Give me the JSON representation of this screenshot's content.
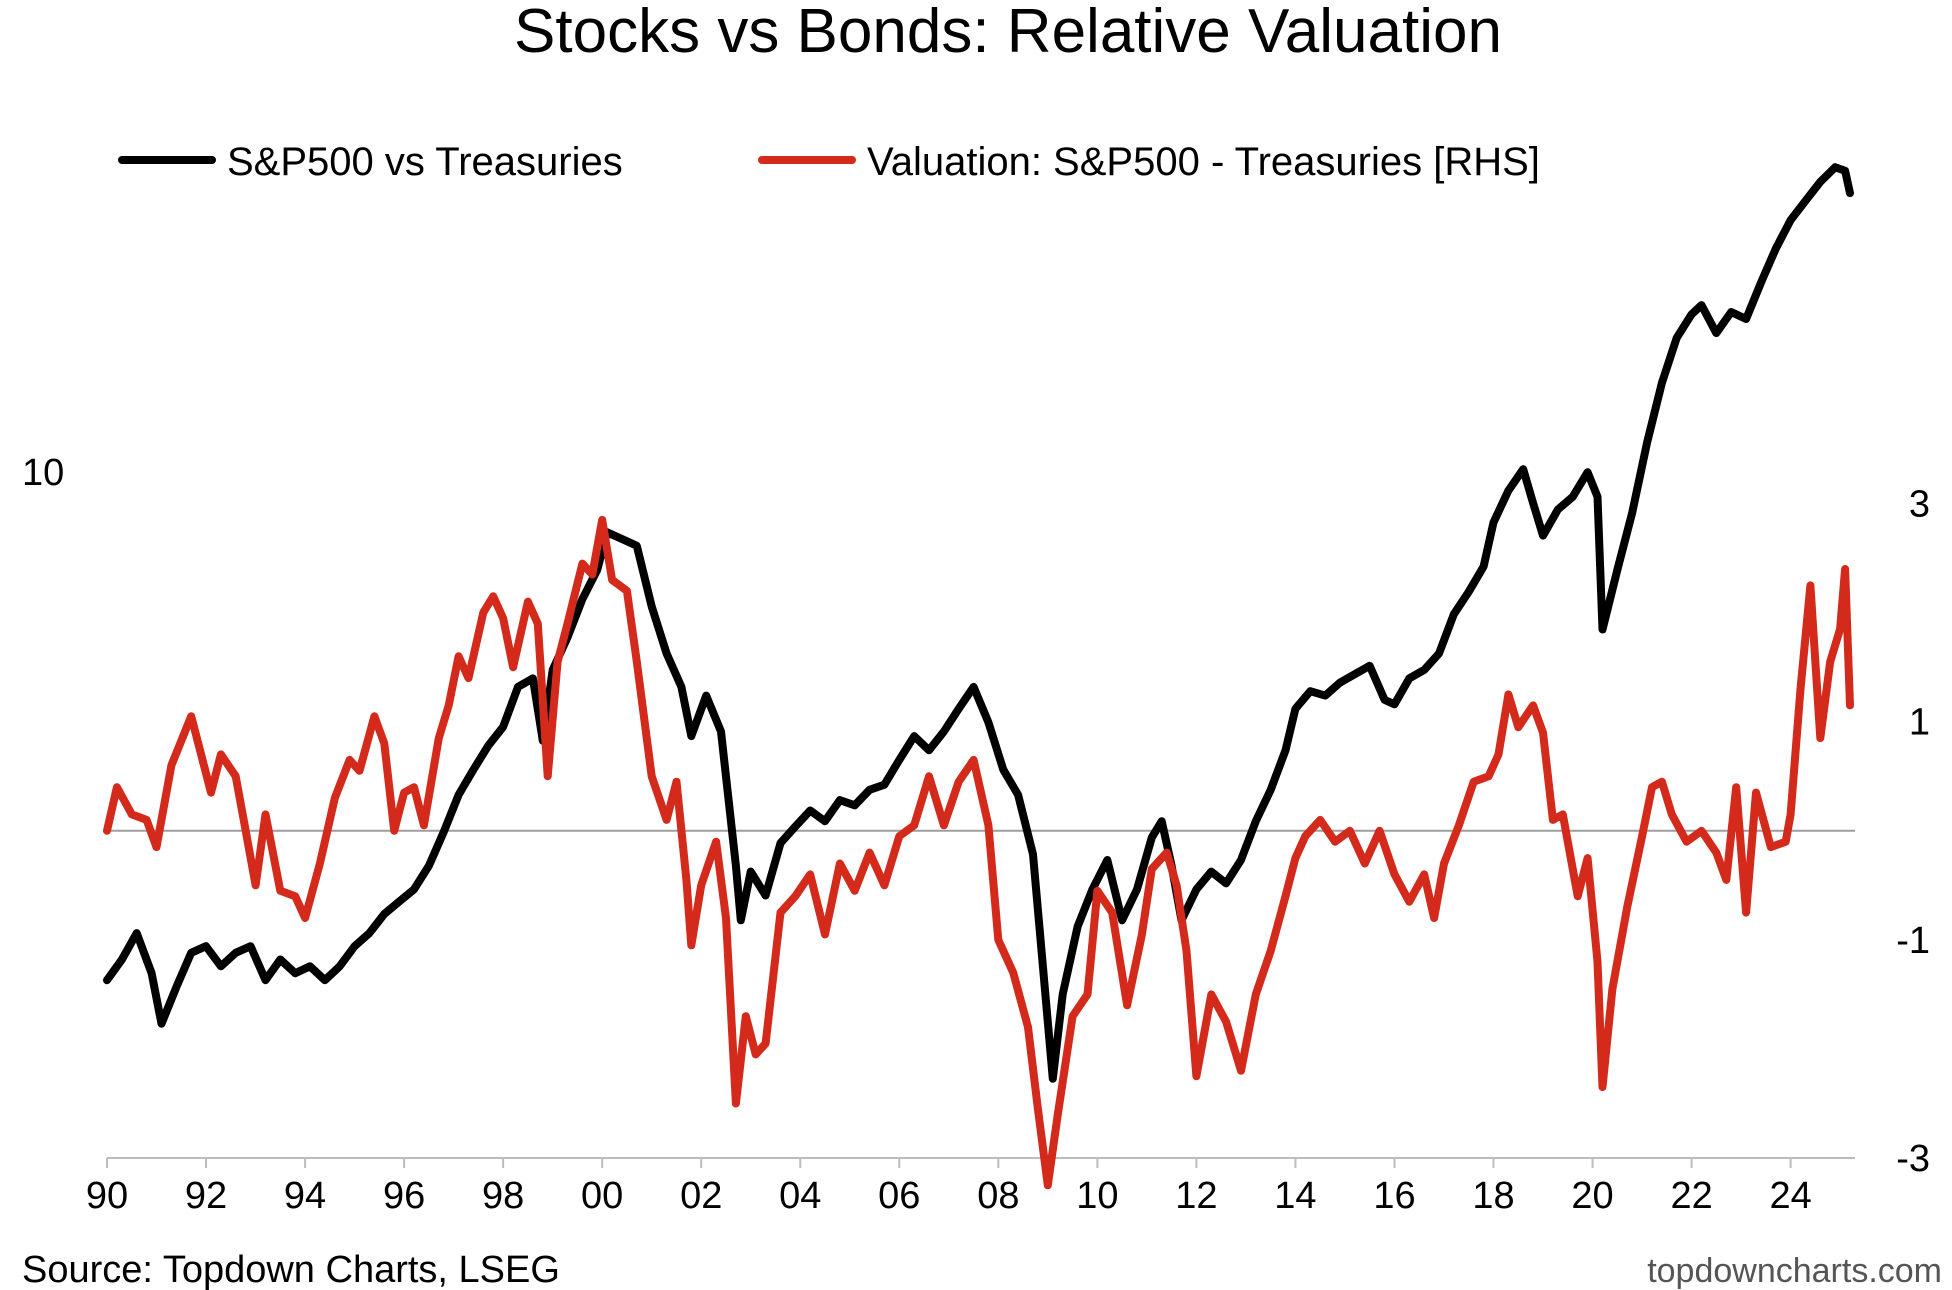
{
  "chart_data": {
    "type": "line",
    "title": "Stocks vs Bonds: Relative Valuation",
    "x_ticks": [
      "90",
      "92",
      "94",
      "96",
      "98",
      "00",
      "02",
      "04",
      "06",
      "08",
      "10",
      "12",
      "14",
      "16",
      "18",
      "20",
      "22",
      "24"
    ],
    "xlim": [
      1990,
      2025.3
    ],
    "left_axis": {
      "scale": "log",
      "ticks": [
        {
          "value": 10,
          "label": "10"
        }
      ],
      "ylim": [
        3.2,
        16.8
      ]
    },
    "right_axis": {
      "scale": "linear",
      "ticks": [
        {
          "value": 3,
          "label": "3"
        },
        {
          "value": 1,
          "label": "1"
        },
        {
          "value": -1,
          "label": "-1"
        },
        {
          "value": -3,
          "label": "-3"
        }
      ],
      "ylim": [
        -3,
        6.15
      ]
    },
    "zero_line": true,
    "grid": false,
    "legend_position": "top-left",
    "series": [
      {
        "name": "S&P500 vs Treasuries",
        "axis": "left",
        "color": "#000000",
        "points": [
          [
            1990.0,
            4.3
          ],
          [
            1990.3,
            4.45
          ],
          [
            1990.6,
            4.65
          ],
          [
            1990.9,
            4.35
          ],
          [
            1991.1,
            4.0
          ],
          [
            1991.4,
            4.25
          ],
          [
            1991.7,
            4.5
          ],
          [
            1992.0,
            4.55
          ],
          [
            1992.3,
            4.4
          ],
          [
            1992.6,
            4.5
          ],
          [
            1992.9,
            4.55
          ],
          [
            1993.2,
            4.3
          ],
          [
            1993.5,
            4.45
          ],
          [
            1993.8,
            4.35
          ],
          [
            1994.1,
            4.4
          ],
          [
            1994.4,
            4.3
          ],
          [
            1994.7,
            4.4
          ],
          [
            1995.0,
            4.55
          ],
          [
            1995.3,
            4.65
          ],
          [
            1995.6,
            4.8
          ],
          [
            1995.9,
            4.9
          ],
          [
            1996.2,
            5.0
          ],
          [
            1996.5,
            5.2
          ],
          [
            1996.8,
            5.5
          ],
          [
            1997.1,
            5.85
          ],
          [
            1997.4,
            6.1
          ],
          [
            1997.7,
            6.35
          ],
          [
            1998.0,
            6.55
          ],
          [
            1998.3,
            7.0
          ],
          [
            1998.6,
            7.1
          ],
          [
            1998.8,
            6.4
          ],
          [
            1999.0,
            7.2
          ],
          [
            1999.3,
            7.6
          ],
          [
            1999.6,
            8.1
          ],
          [
            1999.9,
            8.5
          ],
          [
            2000.1,
            9.05
          ],
          [
            2000.4,
            8.95
          ],
          [
            2000.7,
            8.85
          ],
          [
            2001.0,
            8.0
          ],
          [
            2001.3,
            7.4
          ],
          [
            2001.6,
            7.0
          ],
          [
            2001.8,
            6.45
          ],
          [
            2002.1,
            6.9
          ],
          [
            2002.4,
            6.5
          ],
          [
            2002.7,
            5.2
          ],
          [
            2002.8,
            4.75
          ],
          [
            2003.0,
            5.15
          ],
          [
            2003.3,
            4.95
          ],
          [
            2003.6,
            5.4
          ],
          [
            2003.9,
            5.55
          ],
          [
            2004.2,
            5.7
          ],
          [
            2004.5,
            5.6
          ],
          [
            2004.8,
            5.8
          ],
          [
            2005.1,
            5.75
          ],
          [
            2005.4,
            5.9
          ],
          [
            2005.7,
            5.95
          ],
          [
            2006.0,
            6.2
          ],
          [
            2006.3,
            6.45
          ],
          [
            2006.6,
            6.3
          ],
          [
            2006.9,
            6.5
          ],
          [
            2007.2,
            6.75
          ],
          [
            2007.5,
            7.0
          ],
          [
            2007.8,
            6.6
          ],
          [
            2008.1,
            6.1
          ],
          [
            2008.4,
            5.85
          ],
          [
            2008.7,
            5.3
          ],
          [
            2008.9,
            4.4
          ],
          [
            2009.1,
            3.65
          ],
          [
            2009.3,
            4.2
          ],
          [
            2009.6,
            4.7
          ],
          [
            2009.9,
            5.0
          ],
          [
            2010.2,
            5.25
          ],
          [
            2010.5,
            4.75
          ],
          [
            2010.8,
            5.0
          ],
          [
            2011.1,
            5.45
          ],
          [
            2011.3,
            5.6
          ],
          [
            2011.5,
            5.2
          ],
          [
            2011.7,
            4.75
          ],
          [
            2012.0,
            5.0
          ],
          [
            2012.3,
            5.15
          ],
          [
            2012.6,
            5.05
          ],
          [
            2012.9,
            5.25
          ],
          [
            2013.2,
            5.6
          ],
          [
            2013.5,
            5.9
          ],
          [
            2013.8,
            6.3
          ],
          [
            2014.0,
            6.75
          ],
          [
            2014.3,
            6.95
          ],
          [
            2014.6,
            6.9
          ],
          [
            2014.9,
            7.05
          ],
          [
            2015.2,
            7.15
          ],
          [
            2015.5,
            7.25
          ],
          [
            2015.8,
            6.85
          ],
          [
            2016.0,
            6.8
          ],
          [
            2016.3,
            7.1
          ],
          [
            2016.6,
            7.2
          ],
          [
            2016.9,
            7.4
          ],
          [
            2017.2,
            7.9
          ],
          [
            2017.5,
            8.2
          ],
          [
            2017.8,
            8.55
          ],
          [
            2018.0,
            9.2
          ],
          [
            2018.3,
            9.7
          ],
          [
            2018.6,
            10.05
          ],
          [
            2018.8,
            9.5
          ],
          [
            2019.0,
            9.0
          ],
          [
            2019.3,
            9.4
          ],
          [
            2019.6,
            9.6
          ],
          [
            2019.9,
            10.0
          ],
          [
            2020.1,
            9.6
          ],
          [
            2020.2,
            7.7
          ],
          [
            2020.5,
            8.5
          ],
          [
            2020.8,
            9.35
          ],
          [
            2021.1,
            10.5
          ],
          [
            2021.4,
            11.6
          ],
          [
            2021.7,
            12.5
          ],
          [
            2022.0,
            13.0
          ],
          [
            2022.2,
            13.2
          ],
          [
            2022.5,
            12.6
          ],
          [
            2022.8,
            13.05
          ],
          [
            2023.1,
            12.9
          ],
          [
            2023.4,
            13.7
          ],
          [
            2023.7,
            14.5
          ],
          [
            2024.0,
            15.2
          ],
          [
            2024.3,
            15.7
          ],
          [
            2024.6,
            16.2
          ],
          [
            2024.9,
            16.6
          ],
          [
            2025.1,
            16.5
          ],
          [
            2025.2,
            15.9
          ]
        ]
      },
      {
        "name": "Valuation: S&P500 - Treasuries [RHS]",
        "axis": "right",
        "color": "#d42a1b",
        "points": [
          [
            1990.0,
            0.0
          ],
          [
            1990.2,
            0.4
          ],
          [
            1990.5,
            0.15
          ],
          [
            1990.8,
            0.1
          ],
          [
            1991.0,
            -0.15
          ],
          [
            1991.3,
            0.6
          ],
          [
            1991.7,
            1.05
          ],
          [
            1991.9,
            0.7
          ],
          [
            1992.1,
            0.35
          ],
          [
            1992.3,
            0.7
          ],
          [
            1992.6,
            0.5
          ],
          [
            1992.8,
            0.0
          ],
          [
            1993.0,
            -0.5
          ],
          [
            1993.2,
            0.15
          ],
          [
            1993.5,
            -0.55
          ],
          [
            1993.8,
            -0.6
          ],
          [
            1994.0,
            -0.8
          ],
          [
            1994.3,
            -0.3
          ],
          [
            1994.6,
            0.3
          ],
          [
            1994.9,
            0.65
          ],
          [
            1995.1,
            0.55
          ],
          [
            1995.4,
            1.05
          ],
          [
            1995.6,
            0.8
          ],
          [
            1995.8,
            0.0
          ],
          [
            1996.0,
            0.35
          ],
          [
            1996.2,
            0.4
          ],
          [
            1996.4,
            0.05
          ],
          [
            1996.7,
            0.85
          ],
          [
            1996.9,
            1.15
          ],
          [
            1997.1,
            1.6
          ],
          [
            1997.3,
            1.4
          ],
          [
            1997.6,
            2.0
          ],
          [
            1997.8,
            2.15
          ],
          [
            1998.0,
            1.95
          ],
          [
            1998.2,
            1.5
          ],
          [
            1998.5,
            2.1
          ],
          [
            1998.7,
            1.9
          ],
          [
            1998.9,
            0.5
          ],
          [
            1999.1,
            1.55
          ],
          [
            1999.3,
            1.9
          ],
          [
            1999.6,
            2.45
          ],
          [
            1999.8,
            2.35
          ],
          [
            2000.0,
            2.85
          ],
          [
            2000.2,
            2.3
          ],
          [
            2000.5,
            2.2
          ],
          [
            2000.7,
            1.55
          ],
          [
            2001.0,
            0.5
          ],
          [
            2001.3,
            0.1
          ],
          [
            2001.5,
            0.45
          ],
          [
            2001.7,
            -0.45
          ],
          [
            2001.8,
            -1.05
          ],
          [
            2002.0,
            -0.5
          ],
          [
            2002.3,
            -0.1
          ],
          [
            2002.5,
            -0.8
          ],
          [
            2002.7,
            -2.5
          ],
          [
            2002.9,
            -1.7
          ],
          [
            2003.1,
            -2.05
          ],
          [
            2003.3,
            -1.95
          ],
          [
            2003.6,
            -0.75
          ],
          [
            2003.9,
            -0.6
          ],
          [
            2004.2,
            -0.4
          ],
          [
            2004.5,
            -0.95
          ],
          [
            2004.8,
            -0.3
          ],
          [
            2005.1,
            -0.55
          ],
          [
            2005.4,
            -0.2
          ],
          [
            2005.7,
            -0.5
          ],
          [
            2006.0,
            -0.05
          ],
          [
            2006.3,
            0.05
          ],
          [
            2006.6,
            0.5
          ],
          [
            2006.9,
            0.05
          ],
          [
            2007.2,
            0.45
          ],
          [
            2007.5,
            0.65
          ],
          [
            2007.8,
            0.05
          ],
          [
            2008.0,
            -1.0
          ],
          [
            2008.3,
            -1.3
          ],
          [
            2008.6,
            -1.8
          ],
          [
            2008.8,
            -2.55
          ],
          [
            2009.0,
            -3.25
          ],
          [
            2009.2,
            -2.6
          ],
          [
            2009.5,
            -1.7
          ],
          [
            2009.8,
            -1.5
          ],
          [
            2010.0,
            -0.55
          ],
          [
            2010.3,
            -0.75
          ],
          [
            2010.6,
            -1.6
          ],
          [
            2010.9,
            -0.95
          ],
          [
            2011.1,
            -0.35
          ],
          [
            2011.4,
            -0.2
          ],
          [
            2011.6,
            -0.5
          ],
          [
            2011.8,
            -1.1
          ],
          [
            2012.0,
            -2.25
          ],
          [
            2012.3,
            -1.5
          ],
          [
            2012.6,
            -1.75
          ],
          [
            2012.9,
            -2.2
          ],
          [
            2013.2,
            -1.5
          ],
          [
            2013.5,
            -1.1
          ],
          [
            2013.8,
            -0.6
          ],
          [
            2014.0,
            -0.25
          ],
          [
            2014.2,
            -0.05
          ],
          [
            2014.5,
            0.1
          ],
          [
            2014.8,
            -0.1
          ],
          [
            2015.1,
            0.0
          ],
          [
            2015.4,
            -0.3
          ],
          [
            2015.7,
            0.0
          ],
          [
            2016.0,
            -0.4
          ],
          [
            2016.3,
            -0.65
          ],
          [
            2016.6,
            -0.4
          ],
          [
            2016.8,
            -0.8
          ],
          [
            2017.0,
            -0.3
          ],
          [
            2017.3,
            0.05
          ],
          [
            2017.6,
            0.45
          ],
          [
            2017.9,
            0.5
          ],
          [
            2018.1,
            0.7
          ],
          [
            2018.3,
            1.25
          ],
          [
            2018.5,
            0.95
          ],
          [
            2018.8,
            1.15
          ],
          [
            2019.0,
            0.9
          ],
          [
            2019.2,
            0.1
          ],
          [
            2019.4,
            0.15
          ],
          [
            2019.7,
            -0.6
          ],
          [
            2019.9,
            -0.25
          ],
          [
            2020.1,
            -1.2
          ],
          [
            2020.2,
            -2.35
          ],
          [
            2020.4,
            -1.45
          ],
          [
            2020.7,
            -0.7
          ],
          [
            2021.0,
            -0.05
          ],
          [
            2021.2,
            0.4
          ],
          [
            2021.4,
            0.45
          ],
          [
            2021.6,
            0.15
          ],
          [
            2021.9,
            -0.1
          ],
          [
            2022.2,
            0.0
          ],
          [
            2022.5,
            -0.2
          ],
          [
            2022.7,
            -0.45
          ],
          [
            2022.9,
            0.4
          ],
          [
            2023.1,
            -0.75
          ],
          [
            2023.3,
            0.35
          ],
          [
            2023.6,
            -0.15
          ],
          [
            2023.9,
            -0.1
          ],
          [
            2024.0,
            0.15
          ],
          [
            2024.2,
            1.3
          ],
          [
            2024.4,
            2.25
          ],
          [
            2024.6,
            0.85
          ],
          [
            2024.8,
            1.55
          ],
          [
            2025.0,
            1.85
          ],
          [
            2025.1,
            2.4
          ],
          [
            2025.2,
            1.15
          ]
        ]
      }
    ],
    "source": "Source: Topdown Charts, LSEG",
    "watermark": "topdowncharts.com"
  }
}
